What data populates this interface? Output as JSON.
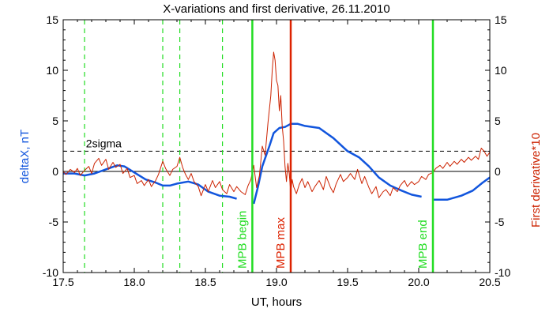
{
  "chart_data": {
    "type": "line",
    "title": "X-variations and first derivative, 26.11.2010",
    "xlabel": "UT, hours",
    "ylabel": "deltaX, nT",
    "y2label": "First derivative*10",
    "xlim": [
      17.5,
      20.5
    ],
    "ylim": [
      -10,
      15
    ],
    "y2lim": [
      -10,
      15
    ],
    "x_ticks": [
      "17.5",
      "18.0",
      "18.5",
      "19.0",
      "19.5",
      "20.0",
      "20.5"
    ],
    "y_ticks": [
      "-10",
      "-5",
      "0",
      "5",
      "10",
      "15"
    ],
    "y2_ticks": [
      "-10",
      "-5",
      "0",
      "5",
      "10",
      "15"
    ],
    "sigma_level": 2.0,
    "sigma_label": "2sigma",
    "dashed_markers_x": [
      17.65,
      18.2,
      18.32,
      18.62
    ],
    "events": [
      {
        "label": "MPB begin",
        "x": 18.83,
        "color": "#22dd22"
      },
      {
        "label": "MPB max",
        "x": 19.1,
        "color": "#dd2200"
      },
      {
        "label": "MPB end",
        "x": 20.1,
        "color": "#22dd22"
      }
    ],
    "series": [
      {
        "name": "deltaX, nT",
        "color": "#1155dd",
        "segments": [
          [
            [
              17.5,
              -0.2
            ],
            [
              17.58,
              -0.2
            ],
            [
              17.65,
              -0.4
            ],
            [
              17.72,
              -0.2
            ],
            [
              17.8,
              0.2
            ],
            [
              17.88,
              0.6
            ],
            [
              17.93,
              0.5
            ],
            [
              18.0,
              -0.1
            ],
            [
              18.08,
              -0.8
            ],
            [
              18.15,
              -1.1
            ],
            [
              18.2,
              -1.4
            ],
            [
              18.25,
              -1.4
            ],
            [
              18.3,
              -1.2
            ],
            [
              18.38,
              -1.0
            ],
            [
              18.45,
              -1.3
            ],
            [
              18.52,
              -2.0
            ],
            [
              18.6,
              -2.4
            ],
            [
              18.67,
              -2.5
            ],
            [
              18.72,
              -2.7
            ]
          ],
          [
            [
              18.84,
              -3.2
            ],
            [
              18.87,
              -1.5
            ],
            [
              18.9,
              0.5
            ],
            [
              18.95,
              2.5
            ],
            [
              18.98,
              3.8
            ],
            [
              19.02,
              4.3
            ],
            [
              19.06,
              4.4
            ],
            [
              19.1,
              4.7
            ],
            [
              19.15,
              4.7
            ],
            [
              19.2,
              4.5
            ],
            [
              19.3,
              4.3
            ],
            [
              19.4,
              3.3
            ],
            [
              19.5,
              2.0
            ],
            [
              19.58,
              1.4
            ],
            [
              19.65,
              0.5
            ],
            [
              19.72,
              -0.6
            ],
            [
              19.8,
              -1.4
            ],
            [
              19.88,
              -1.9
            ],
            [
              19.95,
              -2.3
            ],
            [
              20.02,
              -2.5
            ]
          ],
          [
            [
              20.1,
              -2.8
            ],
            [
              20.2,
              -2.8
            ],
            [
              20.3,
              -2.4
            ],
            [
              20.38,
              -1.9
            ],
            [
              20.45,
              -1.1
            ],
            [
              20.5,
              -0.6
            ]
          ]
        ]
      },
      {
        "name": "First derivative*10",
        "color": "#cc2200",
        "segments": [
          [
            [
              17.5,
              0.0
            ],
            [
              17.52,
              -0.3
            ],
            [
              17.55,
              0.2
            ],
            [
              17.58,
              -0.1
            ],
            [
              17.6,
              0.3
            ],
            [
              17.62,
              -0.4
            ],
            [
              17.65,
              0.1
            ],
            [
              17.68,
              0.5
            ],
            [
              17.7,
              -0.2
            ],
            [
              17.72,
              0.8
            ],
            [
              17.75,
              1.3
            ],
            [
              17.77,
              0.6
            ],
            [
              17.8,
              1.2
            ],
            [
              17.82,
              0.2
            ],
            [
              17.85,
              0.9
            ],
            [
              17.87,
              0.4
            ],
            [
              17.9,
              0.7
            ],
            [
              17.92,
              -0.2
            ],
            [
              17.95,
              0.3
            ],
            [
              17.97,
              -0.6
            ],
            [
              18.0,
              -0.4
            ],
            [
              18.02,
              -1.2
            ],
            [
              18.05,
              -0.9
            ],
            [
              18.07,
              -1.4
            ],
            [
              18.1,
              -0.8
            ],
            [
              18.12,
              -1.5
            ],
            [
              18.15,
              -0.9
            ],
            [
              18.17,
              -0.3
            ],
            [
              18.2,
              1.0
            ],
            [
              18.22,
              0.3
            ],
            [
              18.25,
              -0.4
            ],
            [
              18.27,
              0.2
            ],
            [
              18.3,
              0.5
            ],
            [
              18.32,
              1.4
            ],
            [
              18.34,
              0.4
            ],
            [
              18.36,
              -0.3
            ],
            [
              18.38,
              -0.8
            ],
            [
              18.4,
              -0.2
            ],
            [
              18.42,
              -1.0
            ],
            [
              18.45,
              -1.5
            ],
            [
              18.47,
              -2.4
            ],
            [
              18.5,
              -1.3
            ],
            [
              18.52,
              -2.0
            ],
            [
              18.55,
              -0.9
            ],
            [
              18.57,
              -1.6
            ],
            [
              18.6,
              -1.0
            ],
            [
              18.62,
              -1.8
            ],
            [
              18.65,
              -2.2
            ],
            [
              18.67,
              -1.3
            ],
            [
              18.7,
              -2.0
            ],
            [
              18.72,
              -1.5
            ],
            [
              18.75,
              -2.0
            ],
            [
              18.78,
              -2.3
            ],
            [
              18.8,
              -1.4
            ],
            [
              18.82,
              -0.8
            ],
            [
              18.84,
              0.6
            ],
            [
              18.86,
              -1.6
            ],
            [
              18.88,
              -0.4
            ],
            [
              18.9,
              2.5
            ],
            [
              18.92,
              1.6
            ],
            [
              18.94,
              4.8
            ],
            [
              18.96,
              7.5
            ],
            [
              18.97,
              10.0
            ],
            [
              18.98,
              11.8
            ],
            [
              18.99,
              11.0
            ],
            [
              19.0,
              9.0
            ],
            [
              19.01,
              8.5
            ],
            [
              19.02,
              6.0
            ],
            [
              19.03,
              7.5
            ],
            [
              19.04,
              4.5
            ],
            [
              19.05,
              3.0
            ],
            [
              19.06,
              0.5
            ],
            [
              19.07,
              -1.0
            ],
            [
              19.08,
              0.8
            ],
            [
              19.09,
              -0.3
            ],
            [
              19.1,
              -2.0
            ],
            [
              19.11,
              -0.8
            ],
            [
              19.12,
              -1.5
            ],
            [
              19.14,
              -2.2
            ],
            [
              19.16,
              -1.3
            ],
            [
              19.18,
              -0.7
            ],
            [
              19.2,
              -1.6
            ],
            [
              19.22,
              -1.0
            ],
            [
              19.25,
              -2.0
            ],
            [
              19.27,
              -1.5
            ],
            [
              19.3,
              -0.9
            ],
            [
              19.33,
              -1.8
            ],
            [
              19.35,
              -0.5
            ],
            [
              19.38,
              -1.6
            ],
            [
              19.4,
              -2.1
            ],
            [
              19.42,
              -1.2
            ],
            [
              19.45,
              -0.3
            ],
            [
              19.47,
              -1.0
            ],
            [
              19.5,
              -0.6
            ],
            [
              19.52,
              -0.2
            ],
            [
              19.55,
              -0.8
            ],
            [
              19.57,
              0.2
            ],
            [
              19.6,
              -1.2
            ],
            [
              19.62,
              -0.5
            ],
            [
              19.65,
              -1.6
            ],
            [
              19.67,
              -2.2
            ],
            [
              19.7,
              -1.5
            ],
            [
              19.72,
              -2.6
            ],
            [
              19.75,
              -2.0
            ],
            [
              19.77,
              -1.8
            ],
            [
              19.8,
              -2.4
            ],
            [
              19.82,
              -1.6
            ],
            [
              19.85,
              -2.0
            ],
            [
              19.87,
              -1.4
            ],
            [
              19.9,
              -0.9
            ],
            [
              19.92,
              -1.5
            ],
            [
              19.95,
              -1.0
            ],
            [
              19.97,
              -1.3
            ],
            [
              20.0,
              -1.0
            ],
            [
              20.02,
              -0.5
            ],
            [
              20.05,
              -0.8
            ],
            [
              20.07,
              -0.3
            ],
            [
              20.1,
              -0.1
            ],
            [
              20.12,
              0.3
            ],
            [
              20.15,
              0.6
            ],
            [
              20.17,
              0.3
            ],
            [
              20.2,
              0.9
            ],
            [
              20.22,
              0.5
            ],
            [
              20.25,
              1.0
            ],
            [
              20.27,
              0.7
            ],
            [
              20.3,
              1.2
            ],
            [
              20.32,
              0.9
            ],
            [
              20.35,
              1.4
            ],
            [
              20.37,
              1.1
            ],
            [
              20.4,
              1.5
            ],
            [
              20.42,
              1.2
            ],
            [
              20.44,
              2.3
            ],
            [
              20.46,
              2.0
            ],
            [
              20.48,
              1.5
            ],
            [
              20.5,
              1.9
            ]
          ]
        ]
      }
    ]
  }
}
